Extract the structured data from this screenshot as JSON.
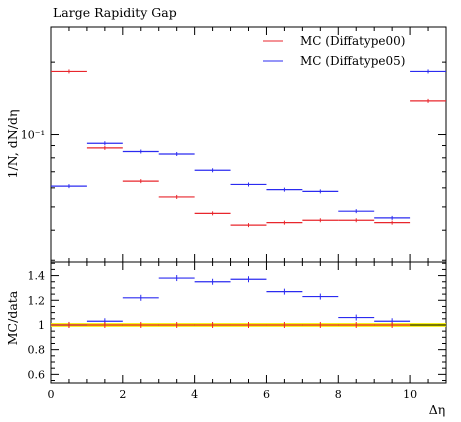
{
  "chart_data": [
    {
      "type": "line",
      "panel": "main",
      "title": "Large Rapidity Gap",
      "ylabel": "1/N, dN/dη",
      "ylog": true,
      "ylim": [
        0.0295,
        0.28
      ],
      "xlim": [
        0,
        11
      ],
      "yticks_labeled": [
        {
          "value": 0.1,
          "label": "10⁻¹"
        }
      ],
      "bin_edges": [
        0,
        1,
        2,
        3,
        4,
        5,
        6,
        7,
        8,
        9,
        10,
        11
      ],
      "legend_position": "top-right",
      "series": [
        {
          "name": "MC (Diffatype00)",
          "color": "#e8262c",
          "values": [
            0.183,
            0.088,
            0.064,
            0.055,
            0.047,
            0.042,
            0.043,
            0.044,
            0.044,
            0.043,
            0.138
          ]
        },
        {
          "name": "MC (Diffatype05)",
          "color": "#2b2bf0",
          "values": [
            0.061,
            0.092,
            0.085,
            0.083,
            0.071,
            0.062,
            0.059,
            0.058,
            0.048,
            0.045,
            0.183
          ]
        }
      ]
    },
    {
      "type": "line",
      "panel": "ratio",
      "ylabel": "MC/data",
      "xlabel": "Δη",
      "ylim": [
        0.53,
        1.51
      ],
      "xlim": [
        0,
        11
      ],
      "yticks": [
        0.6,
        0.8,
        1,
        1.2,
        1.4
      ],
      "ytick_labels": [
        "0.6",
        "0.8",
        "1",
        "1.2",
        "1.4"
      ],
      "xticks": [
        0,
        2,
        4,
        6,
        8,
        10
      ],
      "xtick_labels": [
        "0",
        "2",
        "4",
        "6",
        "8",
        "10"
      ],
      "band": {
        "color": "#f5f000",
        "low": 0.985,
        "high": 1.015
      },
      "reference": {
        "value": 1,
        "color": "#000000"
      },
      "series": [
        {
          "name": "MC (Diffatype05)",
          "color": "#2b2bf0",
          "values": [
            1.0,
            1.03,
            1.22,
            1.38,
            1.35,
            1.37,
            1.27,
            1.23,
            1.06,
            1.03,
            null
          ]
        },
        {
          "name": "MC (Diffatype00)",
          "color": "#e8262c",
          "values": [
            1.0,
            1.0,
            1.0,
            1.0,
            1.0,
            1.0,
            1.0,
            1.0,
            1.0,
            1.0,
            null
          ]
        }
      ]
    }
  ]
}
